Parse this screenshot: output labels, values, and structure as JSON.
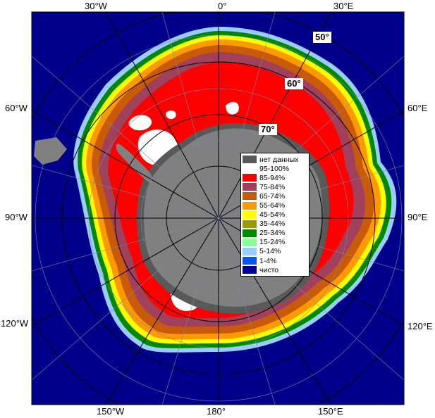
{
  "map": {
    "longitude_labels_top": [
      "30°W",
      "0°",
      "30°E"
    ],
    "longitude_labels_left": [
      "60°W",
      "90°W",
      "120°W"
    ],
    "longitude_labels_right": [
      "60°E",
      "90°E",
      "120°E"
    ],
    "longitude_labels_bottom": [
      "150°W",
      "180°",
      "150°E"
    ],
    "latitude_labels": [
      "50°",
      "60°",
      "70°"
    ],
    "colors": {
      "ocean_clear": "#00008b",
      "land": "#808080",
      "no_data": "#595959"
    }
  },
  "legend": {
    "items": [
      {
        "label": "нет данных",
        "color": "#595959"
      },
      {
        "label": "95-100%",
        "color": "#ffffff"
      },
      {
        "label": "85-94%",
        "color": "#ff0000"
      },
      {
        "label": "75-84%",
        "color": "#a0405a"
      },
      {
        "label": "65-74%",
        "color": "#c85a0a"
      },
      {
        "label": "55-64%",
        "color": "#ff9900"
      },
      {
        "label": "45-54%",
        "color": "#ffff00"
      },
      {
        "label": "35-44%",
        "color": "#999900"
      },
      {
        "label": "25-34%",
        "color": "#008800"
      },
      {
        "label": "15-24%",
        "color": "#88ff99"
      },
      {
        "label": "5-14%",
        "color": "#99ccff"
      },
      {
        "label": "1-4%",
        "color": "#0055ff"
      },
      {
        "label": "чисто",
        "color": "#00008b"
      }
    ]
  }
}
